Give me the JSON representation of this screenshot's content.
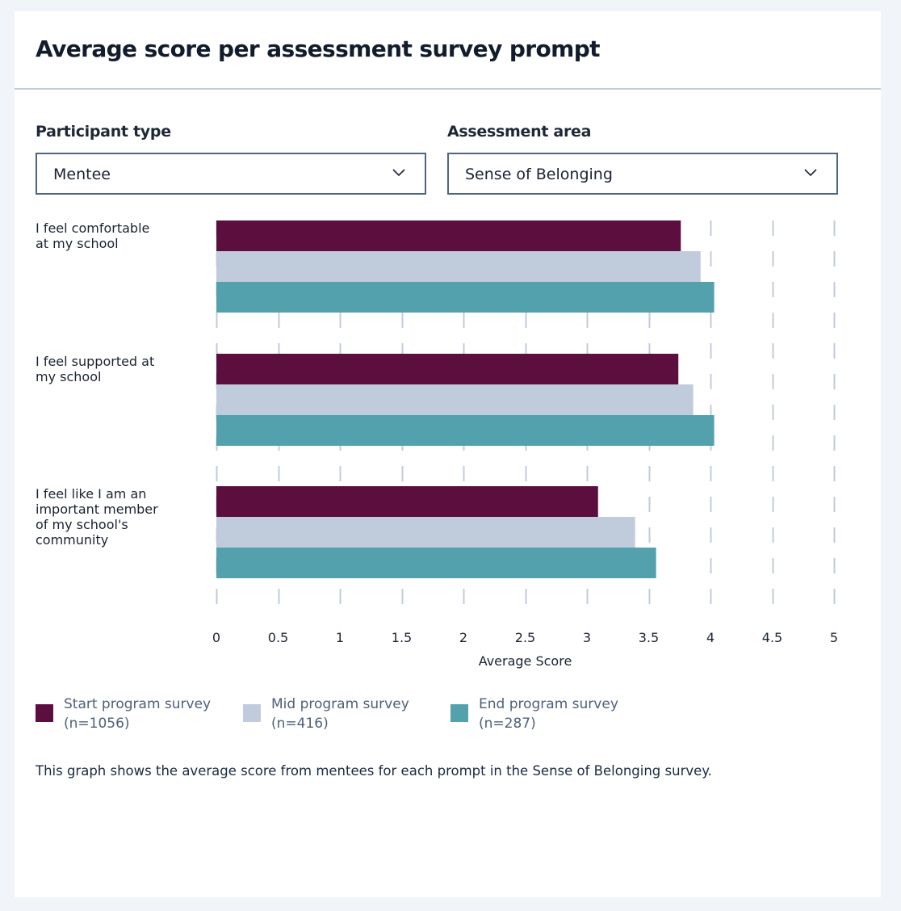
{
  "card": {
    "title": "Average score per assessment survey prompt"
  },
  "filters": {
    "participant_type": {
      "label": "Participant type",
      "value": "Mentee"
    },
    "assessment_area": {
      "label": "Assessment area",
      "value": "Sense of Belonging"
    }
  },
  "chart_data": {
    "type": "bar",
    "orientation": "horizontal",
    "title": "Average score per assessment survey prompt",
    "xlabel": "Average Score",
    "ylabel": "",
    "xlim": [
      0,
      5
    ],
    "xticks": [
      "0",
      "0.5",
      "1",
      "1.5",
      "2",
      "2.5",
      "3",
      "3.5",
      "4",
      "4.5",
      "5"
    ],
    "grid": "vertical dashed",
    "legend_position": "bottom-left",
    "categories": [
      "I feel comfortable at my school",
      "I feel supported at my school",
      "I feel like I am an important member of my school's community"
    ],
    "category_lines": [
      [
        "I feel comfortable",
        "at my school"
      ],
      [
        "I feel supported at",
        "my school"
      ],
      [
        "I feel like I am an",
        "important member",
        "of my school's",
        "community"
      ]
    ],
    "series": [
      {
        "name": "Start program survey",
        "n_label": "(n=1056)",
        "color": "#5c0f3f",
        "values": [
          3.76,
          3.74,
          3.09
        ]
      },
      {
        "name": "Mid program survey",
        "n_label": "(n=416)",
        "color": "#c0ccdb",
        "values": [
          3.92,
          3.86,
          3.39
        ]
      },
      {
        "name": "End program survey",
        "n_label": "(n=287)",
        "color": "#53a1ad",
        "values": [
          4.03,
          4.03,
          3.56
        ]
      }
    ]
  },
  "caption": "This graph shows the average score from mentees for each prompt in the Sense of Belonging survey."
}
